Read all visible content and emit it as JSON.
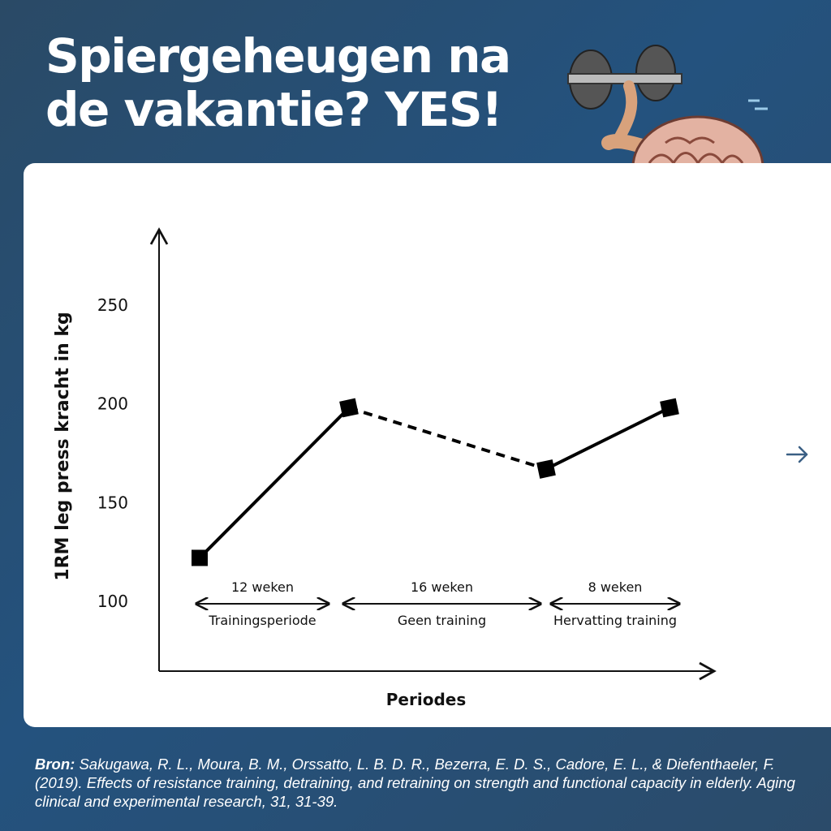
{
  "title": {
    "line1": "Spiergeheugen na",
    "line2": "de vakantie? YES!"
  },
  "icons": {
    "mascot": "brain-lifting-dumbbells-icon",
    "next": "arrow-right-icon"
  },
  "colors": {
    "background": "#26507a",
    "card": "#ffffff",
    "line": "#000000",
    "accent_arrow": "#3a5f84"
  },
  "chart_data": {
    "type": "line",
    "title": "",
    "xlabel": "Periodes",
    "ylabel": "1RM leg press kracht in kg",
    "ylim": [
      60,
      280
    ],
    "yticks": [
      100,
      150,
      200,
      250
    ],
    "x": [
      0,
      12,
      28,
      36
    ],
    "values": [
      122,
      198,
      167,
      198
    ],
    "segments": [
      {
        "from": 0,
        "to": 1,
        "style": "solid"
      },
      {
        "from": 1,
        "to": 2,
        "style": "dashed"
      },
      {
        "from": 2,
        "to": 3,
        "style": "solid"
      }
    ],
    "periods": [
      {
        "weeks": "12 weken",
        "label": "Trainingsperiode",
        "x_start": 0,
        "x_end": 12
      },
      {
        "weeks": "16 weken",
        "label": "Geen training",
        "x_start": 12,
        "x_end": 28
      },
      {
        "weeks": "8 weken",
        "label": "Hervatting training",
        "x_start": 28,
        "x_end": 36
      }
    ],
    "grid": false,
    "legend": "none"
  },
  "source": {
    "prefix": "Bron:",
    "text": "Sakugawa, R. L., Moura, B. M., Orssatto, L. B. D. R., Bezerra, E. D. S., Cadore, E. L., & Diefenthaeler, F. (2019). Effects of resistance training, detraining, and retraining on strength and functional capacity in elderly. Aging clinical and experimental research, 31, 31-39."
  }
}
